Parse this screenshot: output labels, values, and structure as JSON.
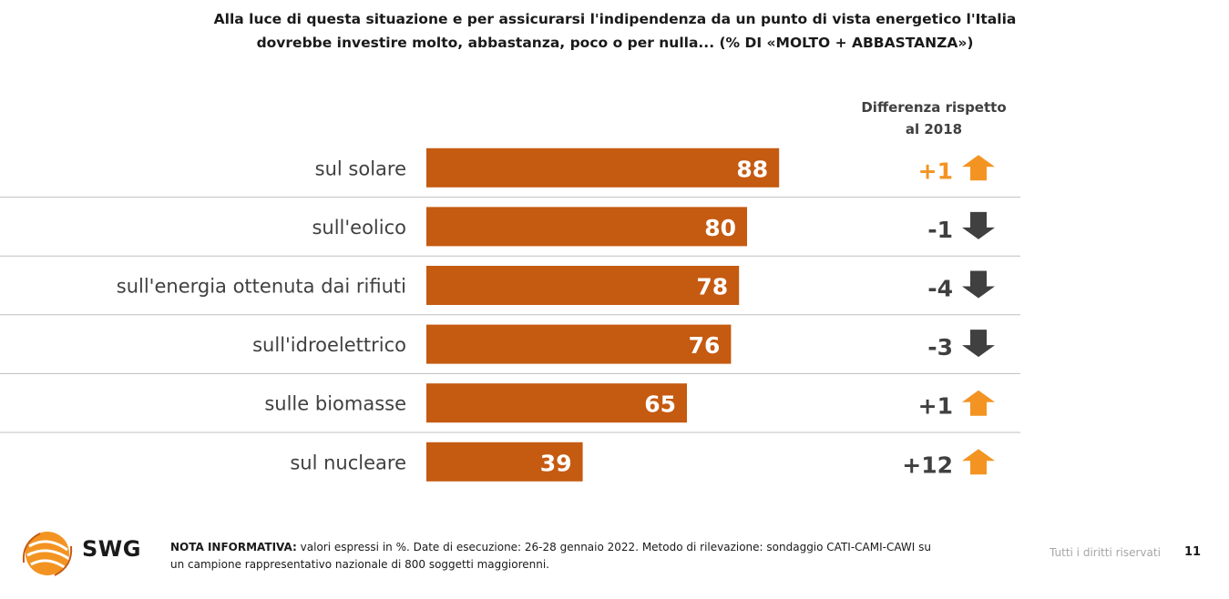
{
  "title_line1": "Alla luce di questa situazione e per assicurarsi l'indipendenza da un punto di vista energetico l'Italia",
  "title_line2": "dovrebbe investire molto, abbastanza, poco o per nulla... (% DI «MOLTO + ABBASTANZA»)",
  "diff_header_line1": "Differenza rispetto",
  "diff_header_line2": "al 2018",
  "chart_data": {
    "type": "bar",
    "orientation": "horizontal",
    "categories": [
      "sul solare",
      "sull'eolico",
      "sull'energia ottenuta dai rifiuti",
      "sull'idroelettrico",
      "sulle biomasse",
      "sul nucleare"
    ],
    "values": [
      88,
      80,
      78,
      76,
      65,
      39
    ],
    "value_labels": [
      "88",
      "80",
      "78",
      "76",
      "65",
      "39"
    ],
    "xlim": [
      0,
      100
    ],
    "differences": [
      "+1",
      "-1",
      "-4",
      "-3",
      "+1",
      "+12"
    ],
    "difference_direction": [
      "up",
      "down",
      "down",
      "down",
      "up",
      "up"
    ],
    "highlighted_difference_index": 0,
    "bar_color": "#c55a11",
    "up_arrow_color": "#f39422",
    "down_arrow_color": "#404040",
    "highlight_text_color": "#f39422"
  },
  "footer": {
    "note_label": "NOTA INFORMATIVA:",
    "note_text": " valori espressi in %. Date di esecuzione: 26-28 gennaio 2022. Metodo di rilevazione: sondaggio CATI-CAMI-CAWI su",
    "note_text2": "un campione rappresentativo nazionale di 800 soggetti maggiorenni.",
    "rights": "Tutti i diritti riservati",
    "page_number": "11"
  },
  "logo_text": "SWG"
}
